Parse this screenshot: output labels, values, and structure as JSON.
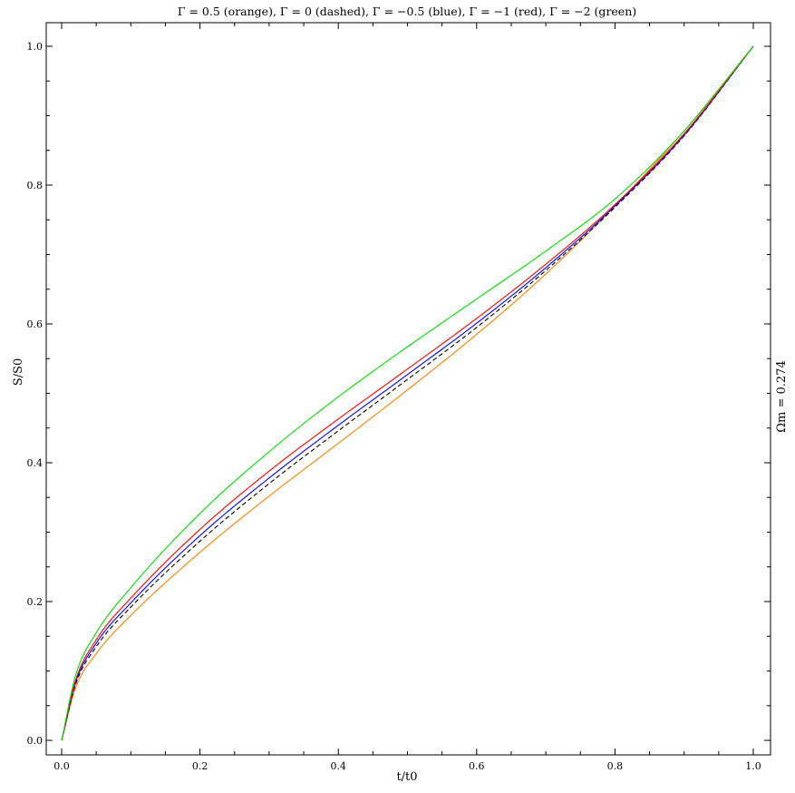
{
  "chart_data": {
    "type": "line",
    "title": "Γ = 0.5 (orange), Γ = 0 (dashed), Γ = −0.5 (blue), Γ = −1 (red), Γ = −2 (green)",
    "xlabel": "t/t0",
    "ylabel": "S/S0",
    "right_label": "Ωm = 0.274",
    "xlim": [
      0,
      1
    ],
    "ylim": [
      0,
      1
    ],
    "x_ticks": [
      "0.0",
      "0.2",
      "0.4",
      "0.6",
      "0.8",
      "1.0"
    ],
    "y_ticks": [
      "0.0",
      "0.2",
      "0.4",
      "0.6",
      "0.8",
      "1.0"
    ],
    "grid": false,
    "legend": "none",
    "series": [
      {
        "color": "#ff8000",
        "dash": false,
        "x": [
          0,
          0.02,
          0.05,
          0.1,
          0.2,
          0.3,
          0.4,
          0.5,
          0.6,
          0.7,
          0.8,
          0.9,
          1.0
        ],
        "y": [
          0,
          0.075,
          0.125,
          0.18,
          0.271,
          0.352,
          0.428,
          0.505,
          0.585,
          0.672,
          0.77,
          0.878,
          1.0
        ]
      },
      {
        "color": "#000000",
        "dash": true,
        "x": [
          0,
          0.02,
          0.05,
          0.1,
          0.2,
          0.3,
          0.4,
          0.5,
          0.6,
          0.7,
          0.8,
          0.9,
          1.0
        ],
        "y": [
          0,
          0.08,
          0.135,
          0.192,
          0.287,
          0.37,
          0.446,
          0.52,
          0.595,
          0.677,
          0.768,
          0.871,
          1.0
        ]
      },
      {
        "color": "#0000ff",
        "dash": false,
        "x": [
          0,
          0.02,
          0.05,
          0.1,
          0.2,
          0.3,
          0.4,
          0.5,
          0.6,
          0.7,
          0.8,
          0.9,
          1.0
        ],
        "y": [
          0,
          0.083,
          0.14,
          0.198,
          0.295,
          0.378,
          0.454,
          0.527,
          0.601,
          0.681,
          0.77,
          0.872,
          1.0
        ]
      },
      {
        "color": "#ff0000",
        "dash": false,
        "x": [
          0,
          0.02,
          0.05,
          0.1,
          0.2,
          0.3,
          0.4,
          0.5,
          0.6,
          0.7,
          0.8,
          0.9,
          1.0
        ],
        "y": [
          0,
          0.086,
          0.145,
          0.205,
          0.304,
          0.388,
          0.463,
          0.535,
          0.608,
          0.686,
          0.772,
          0.874,
          1.0
        ]
      },
      {
        "color": "#00dd00",
        "dash": false,
        "x": [
          0,
          0.02,
          0.05,
          0.1,
          0.2,
          0.3,
          0.4,
          0.5,
          0.6,
          0.7,
          0.8,
          0.9,
          1.0
        ],
        "y": [
          0,
          0.093,
          0.155,
          0.22,
          0.327,
          0.416,
          0.495,
          0.567,
          0.636,
          0.705,
          0.78,
          0.878,
          1.0
        ]
      }
    ]
  }
}
